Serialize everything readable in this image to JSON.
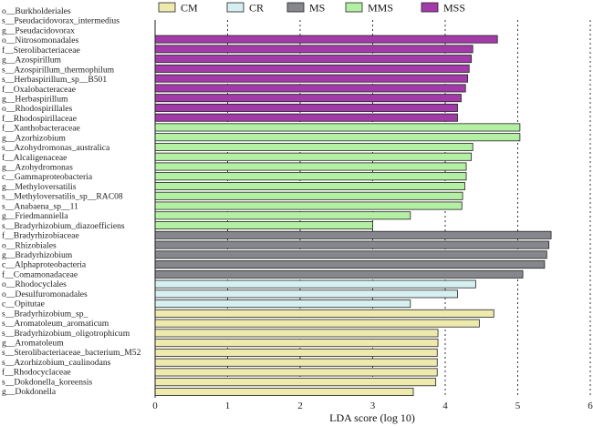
{
  "chart_data": {
    "type": "bar",
    "orientation": "horizontal",
    "xlabel": "LDA score (log 10)",
    "xlim": [
      0,
      6
    ],
    "xticks": [
      0,
      1,
      2,
      3,
      4,
      5,
      6
    ],
    "grid": "dotted vertical lines at each tick",
    "legend_position": "top",
    "groups": [
      {
        "name": "CM",
        "color": "#eeeaae"
      },
      {
        "name": "CR",
        "color": "#d6eff0"
      },
      {
        "name": "MS",
        "color": "#85878c"
      },
      {
        "name": "MMS",
        "color": "#b4f0a4"
      },
      {
        "name": "MSS",
        "color": "#a33aa9"
      }
    ],
    "bars": [
      {
        "label": "o__Burkholderiales",
        "group": null,
        "value": null
      },
      {
        "label": "s__Pseudacidovorax_intermedius",
        "group": null,
        "value": null
      },
      {
        "label": "g__Pseudacidovorax",
        "group": null,
        "value": null
      },
      {
        "label": "o__Nitrosomonadales",
        "group": "MSS",
        "value": 4.72
      },
      {
        "label": "f__Sterolibacteriaceae",
        "group": "MSS",
        "value": 4.38
      },
      {
        "label": "g__Azospirillum",
        "group": "MSS",
        "value": 4.36
      },
      {
        "label": "s__Azospirillum_thermophilum",
        "group": "MSS",
        "value": 4.33
      },
      {
        "label": "s__Herbaspirillum_sp__B501",
        "group": "MSS",
        "value": 4.31
      },
      {
        "label": "f__Oxalobacteraceae",
        "group": "MSS",
        "value": 4.28
      },
      {
        "label": "g__Herbaspirillum",
        "group": "MSS",
        "value": 4.22
      },
      {
        "label": "o__Rhodospirillales",
        "group": "MSS",
        "value": 4.17
      },
      {
        "label": "f__Rhodospirillaceae",
        "group": "MSS",
        "value": 4.17
      },
      {
        "label": "f__Xanthobacteraceae",
        "group": "MMS",
        "value": 5.03
      },
      {
        "label": "g__Azorhizobium",
        "group": "MMS",
        "value": 5.03
      },
      {
        "label": "s__Azohydromonas_australica",
        "group": "MMS",
        "value": 4.38
      },
      {
        "label": "f__Alcaligenaceae",
        "group": "MMS",
        "value": 4.36
      },
      {
        "label": "g__Azohydromonas",
        "group": "MMS",
        "value": 4.29
      },
      {
        "label": "c__Gammaproteobacteria",
        "group": "MMS",
        "value": 4.29
      },
      {
        "label": "g__Methyloversatilis",
        "group": "MMS",
        "value": 4.27
      },
      {
        "label": "s__Methyloversatilis_sp__RAC08",
        "group": "MMS",
        "value": 4.24
      },
      {
        "label": "s__Anabaena_sp__11",
        "group": "MMS",
        "value": 4.23
      },
      {
        "label": "g__Friedmanniella",
        "group": "MMS",
        "value": 3.52
      },
      {
        "label": "s__Bradyrhizobium_diazoefficiens",
        "group": "MMS",
        "value": 3.0
      },
      {
        "label": "f__Bradyrhizobiaceae",
        "group": "MS",
        "value": 5.46
      },
      {
        "label": "o__Rhizobiales",
        "group": "MS",
        "value": 5.43
      },
      {
        "label": "g__Bradyrhizobium",
        "group": "MS",
        "value": 5.4
      },
      {
        "label": "c__Alphaproteobacteria",
        "group": "MS",
        "value": 5.37
      },
      {
        "label": "f__Comamonadaceae",
        "group": "MS",
        "value": 5.07
      },
      {
        "label": "o__Rhodocyclales",
        "group": "CR",
        "value": 4.42
      },
      {
        "label": "o__Desulfuromonadales",
        "group": "CR",
        "value": 4.17
      },
      {
        "label": "c__Opitutae",
        "group": "CR",
        "value": 3.52
      },
      {
        "label": "s__Bradyrhizobium_sp_",
        "group": "CM",
        "value": 4.67
      },
      {
        "label": "s__Aromatoleum_aromaticum",
        "group": "CM",
        "value": 4.47
      },
      {
        "label": "s__Bradyrhizobium_oligotrophicum",
        "group": "CM",
        "value": 3.9
      },
      {
        "label": "g__Aromatoleum",
        "group": "CM",
        "value": 3.9
      },
      {
        "label": "s__Sterolibacteriaceae_bacterium_M52",
        "group": "CM",
        "value": 3.89
      },
      {
        "label": "s__Azorhizobium_caulinodans",
        "group": "CM",
        "value": 3.89
      },
      {
        "label": "f__Rhodocyclaceae",
        "group": "CM",
        "value": 3.89
      },
      {
        "label": "s__Dokdonella_koreensis",
        "group": "CM",
        "value": 3.87
      },
      {
        "label": "g__Dokdonella",
        "group": "CM",
        "value": 3.56
      }
    ],
    "row_labels_extra": []
  }
}
